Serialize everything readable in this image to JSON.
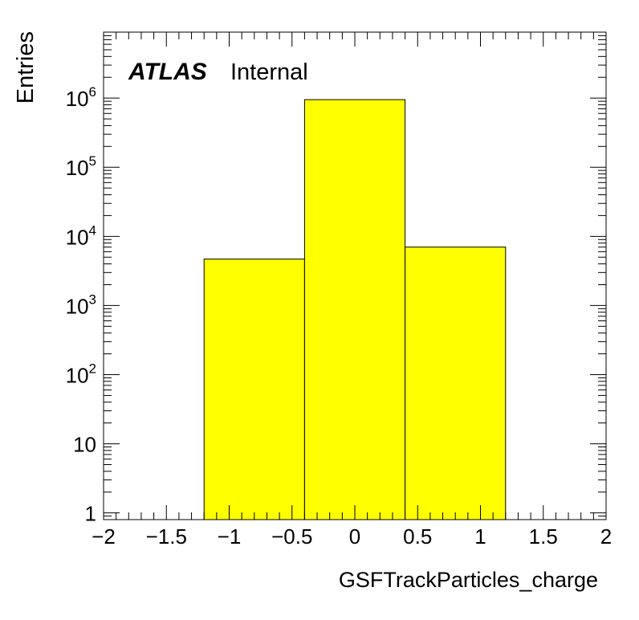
{
  "chart_data": {
    "type": "bar",
    "histogram": true,
    "bin_edges": [
      -1.2,
      -0.4,
      0.4,
      1.2
    ],
    "values": [
      4700,
      950000,
      7000
    ],
    "fill_color": "#ffff00",
    "xlabel": "GSFTrackParticles_charge",
    "ylabel": "Entries",
    "xlim": [
      -2,
      2
    ],
    "ylim": [
      0.8,
      9000000
    ],
    "y_scale": "log",
    "x_ticks": [
      {
        "v": -2,
        "t": "−2"
      },
      {
        "v": -1.5,
        "t": "−1.5"
      },
      {
        "v": -1,
        "t": "−1"
      },
      {
        "v": -0.5,
        "t": "−0.5"
      },
      {
        "v": 0,
        "t": "0"
      },
      {
        "v": 0.5,
        "t": "0.5"
      },
      {
        "v": 1,
        "t": "1"
      },
      {
        "v": 1.5,
        "t": "1.5"
      },
      {
        "v": 2,
        "t": "2"
      }
    ],
    "y_ticks": [
      {
        "v": 1,
        "base": "1",
        "exp": ""
      },
      {
        "v": 10,
        "base": "10",
        "exp": ""
      },
      {
        "v": 100,
        "base": "10",
        "exp": "2"
      },
      {
        "v": 1000,
        "base": "10",
        "exp": "3"
      },
      {
        "v": 10000,
        "base": "10",
        "exp": "4"
      },
      {
        "v": 100000,
        "base": "10",
        "exp": "5"
      },
      {
        "v": 1000000,
        "base": "10",
        "exp": "6"
      }
    ],
    "grid": false,
    "legend": "none"
  },
  "annotation": {
    "experiment": "ATLAS",
    "status": "Internal"
  }
}
